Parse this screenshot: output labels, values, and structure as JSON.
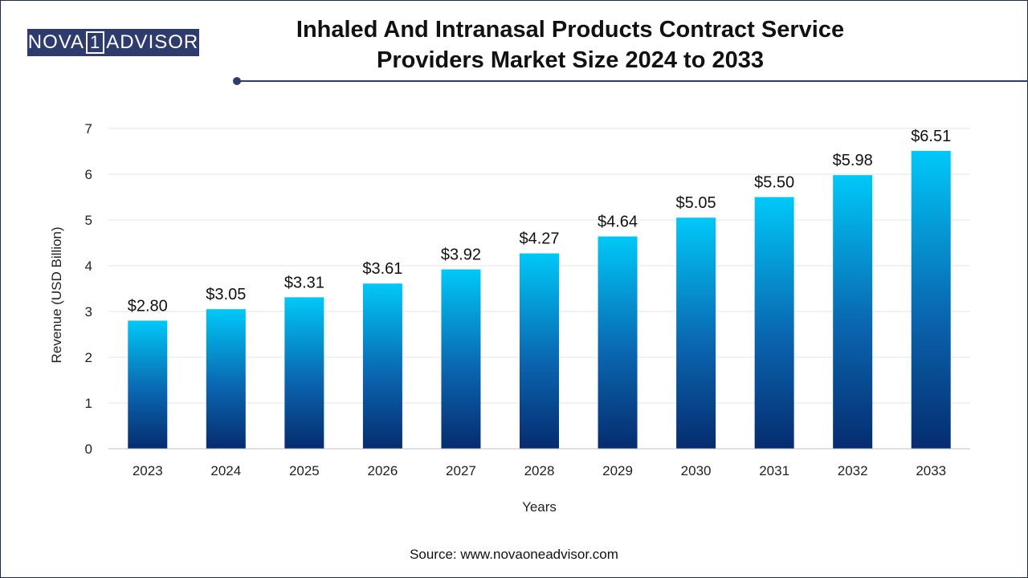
{
  "brand": {
    "logo_left": "NOVA",
    "logo_mid": "1",
    "logo_right": "ADVISOR"
  },
  "title": "Inhaled And Intranasal Products Contract Service Providers Market Size 2024 to 2033",
  "source": "Source: www.novaoneadvisor.com",
  "colors": {
    "bar_top": "#00c8f8",
    "bar_bottom": "#062c6f",
    "brand": "#2e3b6e",
    "grid": "#e6e6e6"
  },
  "chart_data": {
    "type": "bar",
    "categories": [
      "2023",
      "2024",
      "2025",
      "2026",
      "2027",
      "2028",
      "2029",
      "2030",
      "2031",
      "2032",
      "2033"
    ],
    "values": [
      2.8,
      3.05,
      3.31,
      3.61,
      3.92,
      4.27,
      4.64,
      5.05,
      5.5,
      5.98,
      6.51
    ],
    "data_labels": [
      "$2.80",
      "$3.05",
      "$3.31",
      "$3.61",
      "$3.92",
      "$4.27",
      "$4.64",
      "$5.05",
      "$5.50",
      "$5.98",
      "$6.51"
    ],
    "xlabel": "Years",
    "ylabel": "Revenue (USD Billion)",
    "ylim": [
      0,
      7
    ],
    "yticks": [
      0,
      1,
      2,
      3,
      4,
      5,
      6,
      7
    ],
    "grid": true
  }
}
